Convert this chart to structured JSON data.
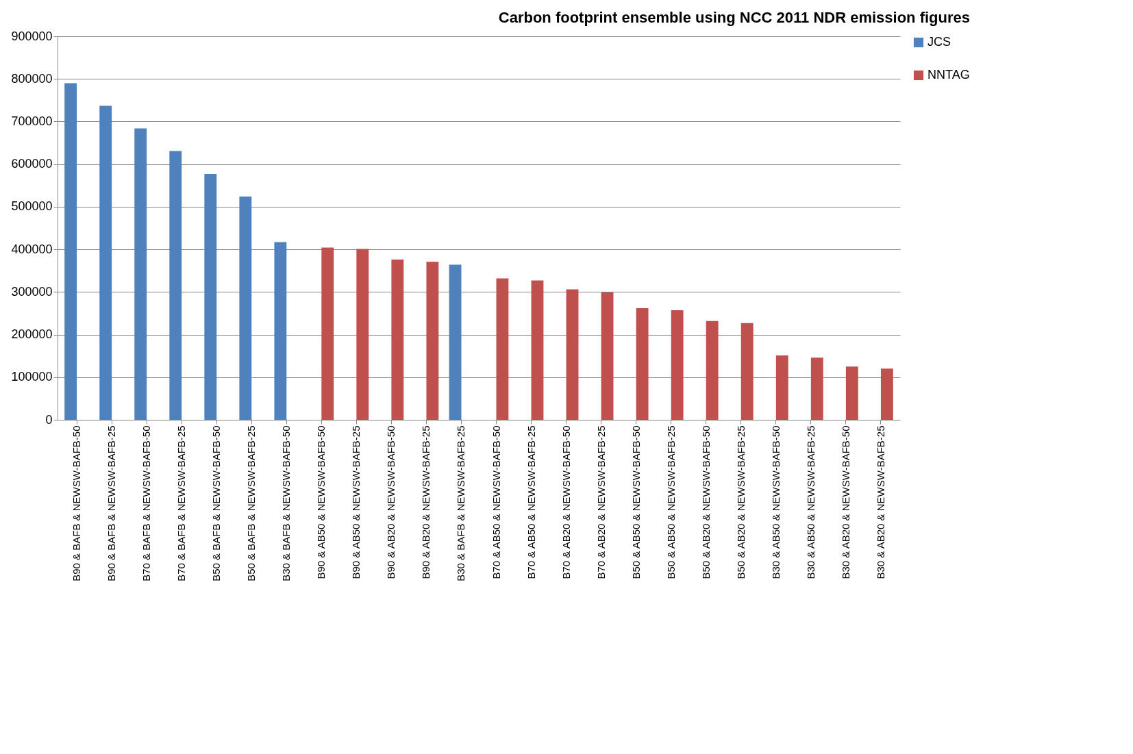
{
  "chart_data": {
    "type": "bar",
    "title": "Carbon footprint ensemble using NCC 2011 NDR emission figures",
    "categories": [
      "B90 & BAFB & NEWSW-BAFB-50",
      "B90 & BAFB & NEWSW-BAFB-25",
      "B70 & BAFB & NEWSW-BAFB-50",
      "B70 & BAFB & NEWSW-BAFB-25",
      "B50 & BAFB & NEWSW-BAFB-50",
      "B50 & BAFB & NEWSW-BAFB-25",
      "B30 & BAFB & NEWSW-BAFB-50",
      "B90 & AB50 & NEWSW-BAFB-50",
      "B90 & AB50 & NEWSW-BAFB-25",
      "B90 & AB20 & NEWSW-BAFB-50",
      "B90 & AB20 & NEWSW-BAFB-25",
      "B30 & BAFB & NEWSW-BAFB-25",
      "B70 & AB50 & NEWSW-BAFB-50",
      "B70 & AB50 & NEWSW-BAFB-25",
      "B70 & AB20 & NEWSW-BAFB-50",
      "B70 & AB20 & NEWSW-BAFB-25",
      "B50 & AB50 & NEWSW-BAFB-50",
      "B50 & AB50 & NEWSW-BAFB-25",
      "B50 & AB20 & NEWSW-BAFB-50",
      "B50 & AB20 & NEWSW-BAFB-25",
      "B30 & AB50 & NEWSW-BAFB-50",
      "B30 & AB50 & NEWSW-BAFB-25",
      "B30 & AB20 & NEWSW-BAFB-50",
      "B30 & AB20 & NEWSW-BAFB-25"
    ],
    "series": [
      {
        "name": "JCS",
        "color": "#4f81bd",
        "values": [
          790000,
          737000,
          684000,
          631000,
          577000,
          524000,
          417000,
          null,
          null,
          null,
          null,
          364000,
          null,
          null,
          null,
          null,
          null,
          null,
          null,
          null,
          null,
          null,
          null,
          null
        ]
      },
      {
        "name": "NNTAG",
        "color": "#c0504d",
        "values": [
          null,
          null,
          null,
          null,
          null,
          null,
          null,
          404000,
          401000,
          376000,
          371000,
          null,
          332000,
          327000,
          306000,
          299000,
          262000,
          257000,
          232000,
          227000,
          151000,
          146000,
          125000,
          120000
        ]
      }
    ],
    "ylim": [
      0,
      900000
    ],
    "yticks": [
      0,
      100000,
      200000,
      300000,
      400000,
      500000,
      600000,
      700000,
      800000,
      900000
    ],
    "grid": "y",
    "legend": "right"
  }
}
